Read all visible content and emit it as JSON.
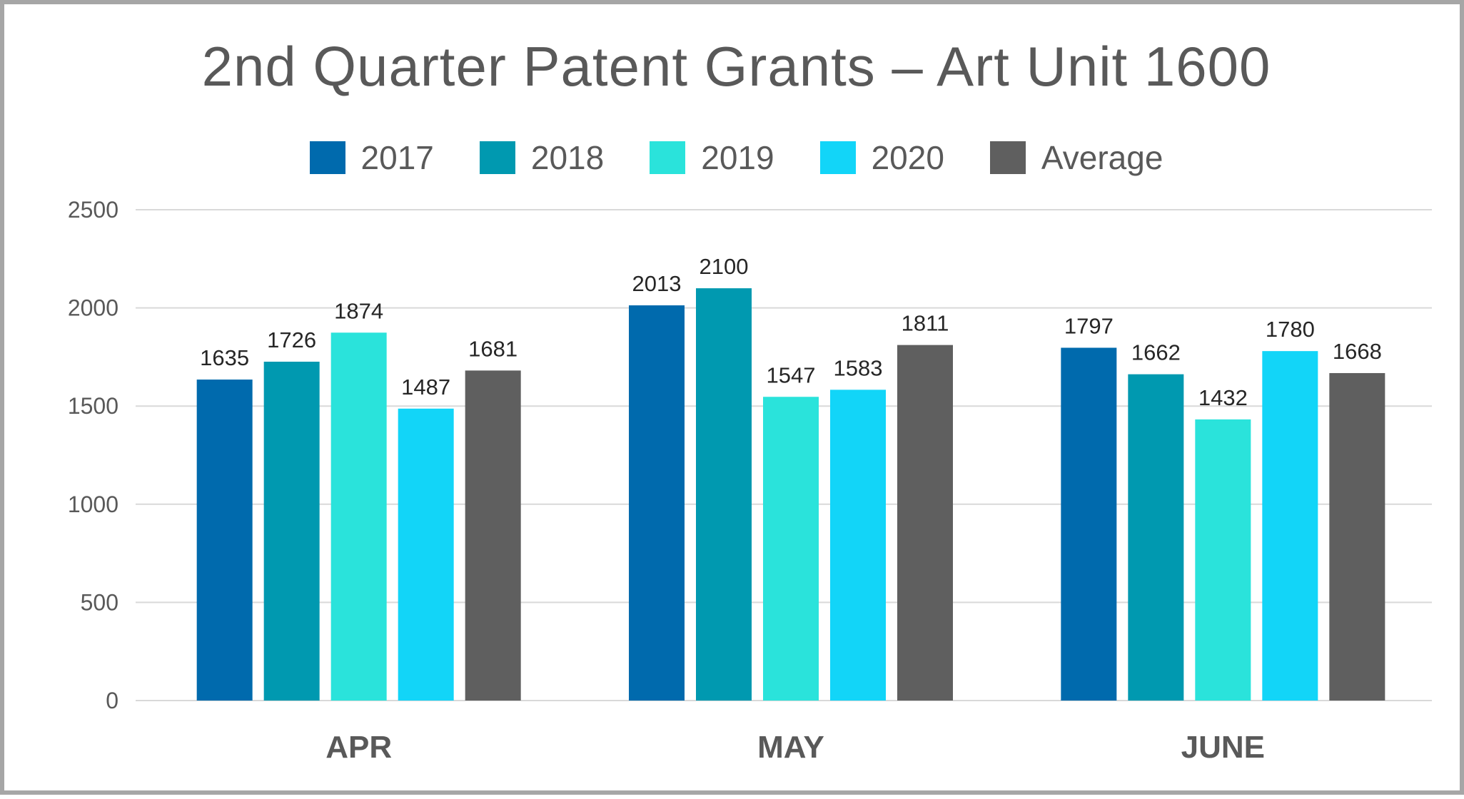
{
  "chart_data": {
    "type": "bar",
    "title": "2nd Quarter Patent Grants – Art Unit 1600",
    "categories": [
      "APR",
      "MAY",
      "JUNE"
    ],
    "series": [
      {
        "name": "2017",
        "color": "#006aad",
        "values": [
          1635,
          2013,
          1797
        ]
      },
      {
        "name": "2018",
        "color": "#0099b0",
        "values": [
          1726,
          2100,
          1662
        ]
      },
      {
        "name": "2019",
        "color": "#2ae3db",
        "values": [
          1874,
          1547,
          1432
        ]
      },
      {
        "name": "2020",
        "color": "#12d5f8",
        "values": [
          1487,
          1583,
          1780
        ]
      },
      {
        "name": "Average",
        "color": "#5f5f5f",
        "values": [
          1681,
          1811,
          1668
        ]
      }
    ],
    "yticks": [
      "0",
      "500",
      "1000",
      "1500",
      "2000",
      "2500"
    ],
    "ylim": [
      0,
      2500
    ],
    "grid": true,
    "legend": "top"
  }
}
